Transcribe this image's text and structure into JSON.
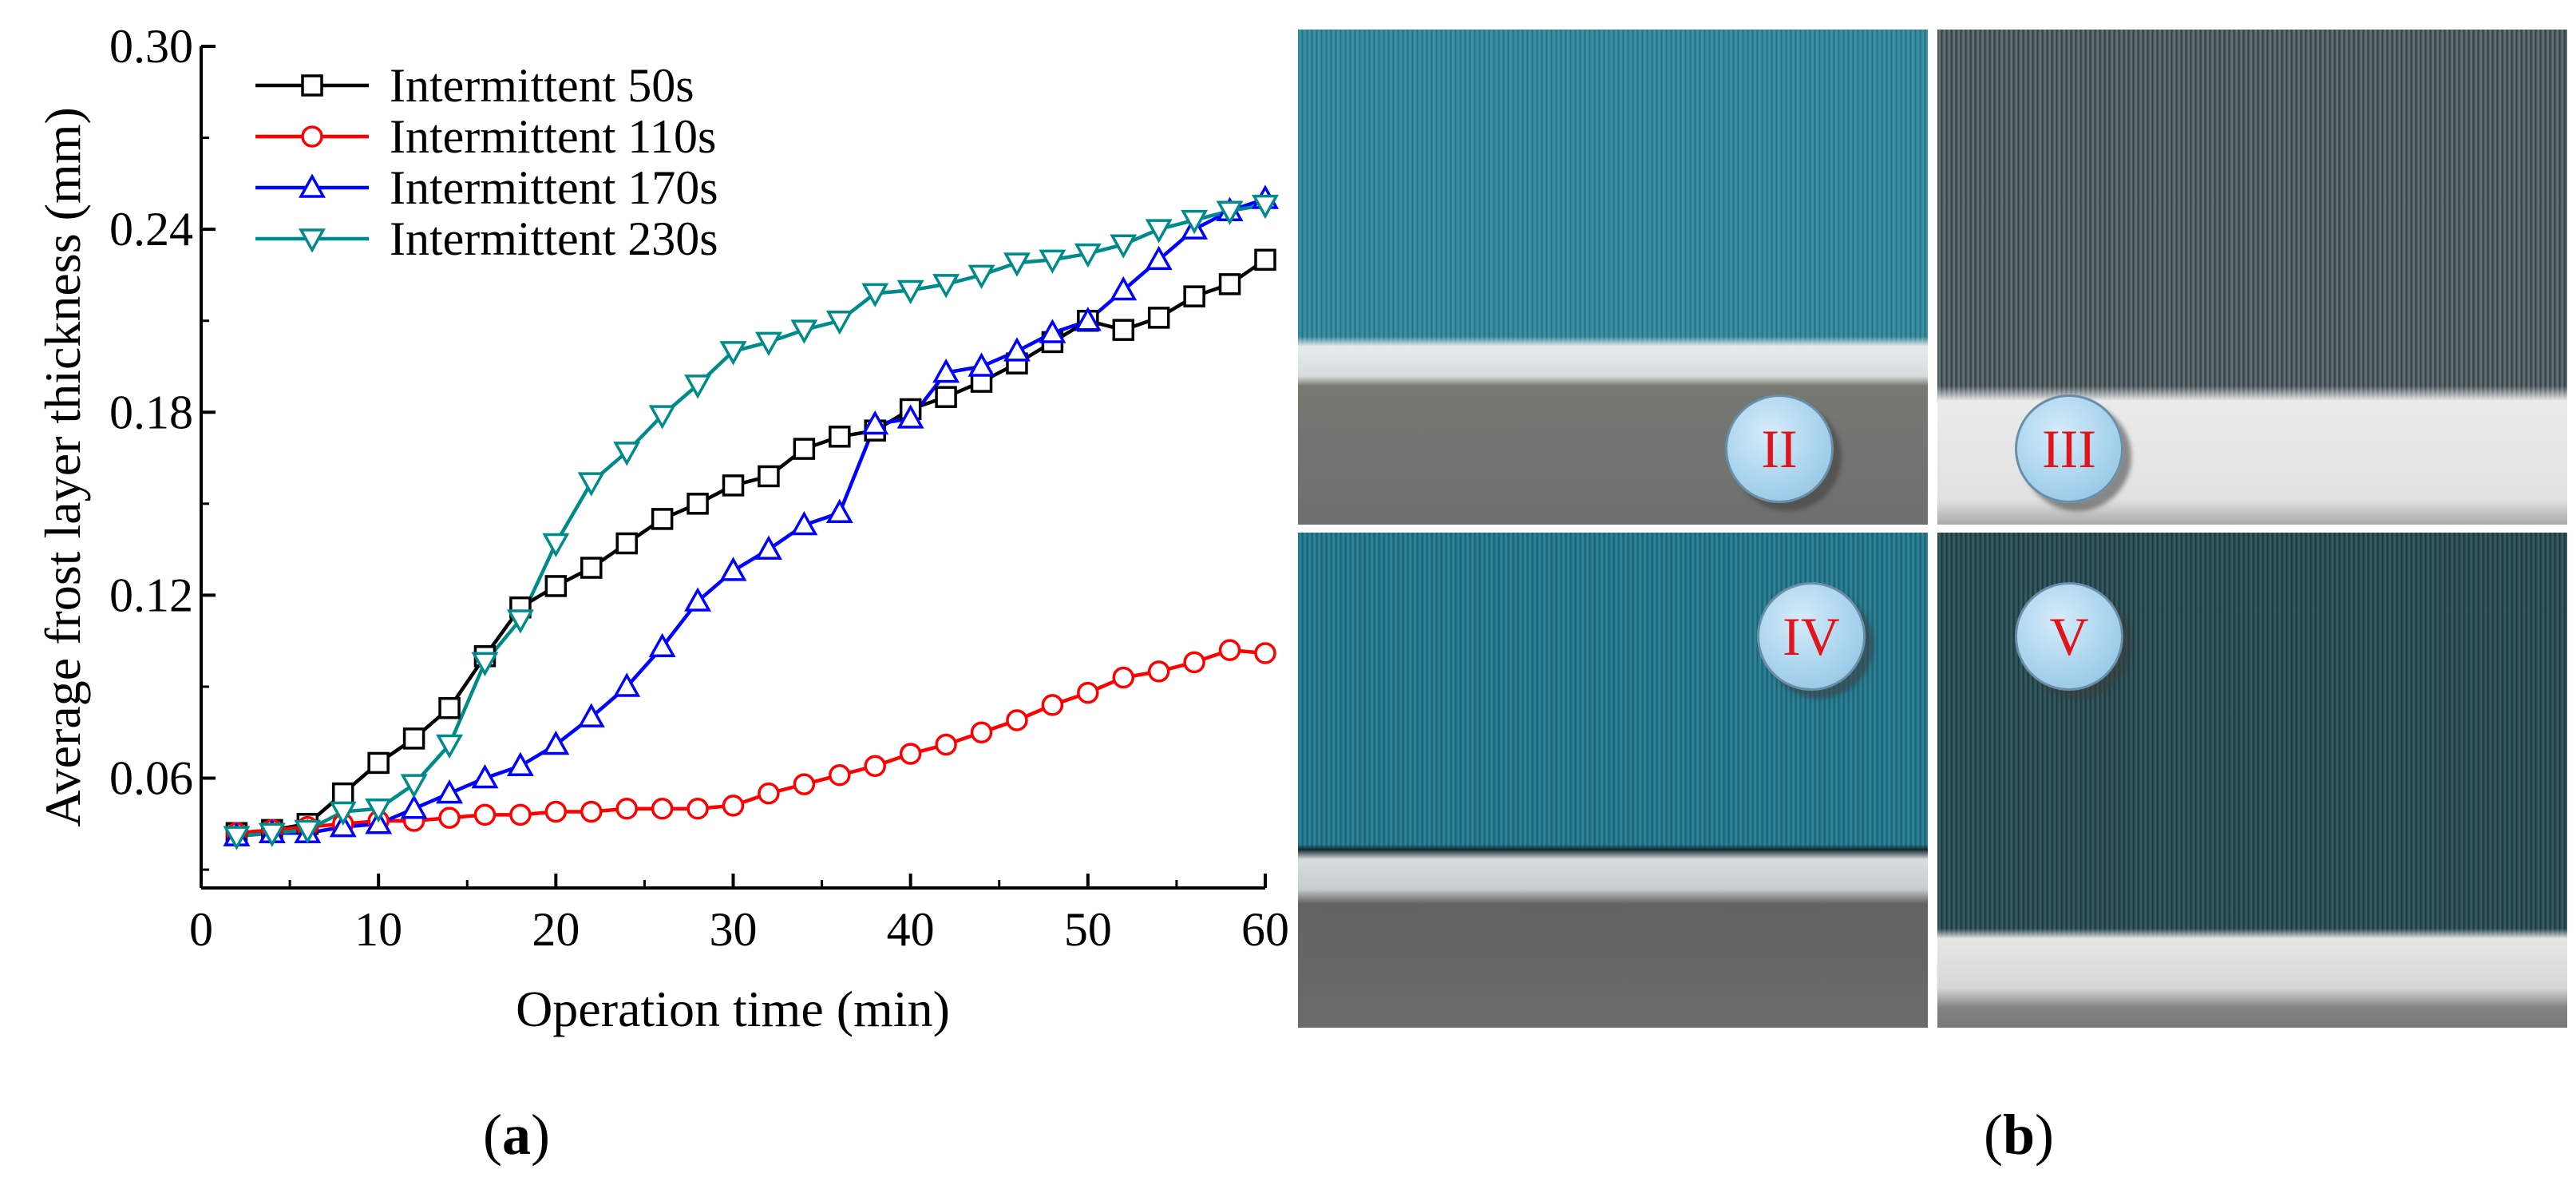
{
  "chart_data": {
    "type": "line",
    "xlabel": "Operation time (min)",
    "ylabel": "Average frost layer thickness (mm)",
    "xlim": [
      0,
      60
    ],
    "ylim": [
      0.024,
      0.3
    ],
    "xticks": [
      0,
      10,
      20,
      30,
      40,
      50,
      60
    ],
    "yticks": [
      "0.06",
      "0.12",
      "0.18",
      "0.24",
      "0.30"
    ],
    "legend_position": "top-left",
    "grid": false,
    "series": [
      {
        "name": "Intermittent 50s",
        "color": "#000000",
        "marker": "square",
        "x": [
          2,
          4,
          6,
          8,
          10,
          12,
          14,
          16,
          18,
          20,
          22,
          24,
          26,
          28,
          30,
          32,
          34,
          36,
          38,
          40,
          42,
          44,
          46,
          48,
          50,
          52,
          54,
          56,
          58,
          60
        ],
        "y": [
          0.042,
          0.043,
          0.045,
          0.055,
          0.065,
          0.073,
          0.083,
          0.1,
          0.116,
          0.123,
          0.129,
          0.137,
          0.145,
          0.15,
          0.156,
          0.159,
          0.168,
          0.172,
          0.174,
          0.181,
          0.185,
          0.19,
          0.196,
          0.203,
          0.21,
          0.207,
          0.211,
          0.218,
          0.222,
          0.23
        ]
      },
      {
        "name": "Intermittent 110s",
        "color": "#ff0000",
        "marker": "circle",
        "x": [
          2,
          4,
          6,
          8,
          10,
          12,
          14,
          16,
          18,
          20,
          22,
          24,
          26,
          28,
          30,
          32,
          34,
          36,
          38,
          40,
          42,
          44,
          46,
          48,
          50,
          52,
          54,
          56,
          58,
          60
        ],
        "y": [
          0.042,
          0.043,
          0.044,
          0.045,
          0.046,
          0.046,
          0.047,
          0.048,
          0.048,
          0.049,
          0.049,
          0.05,
          0.05,
          0.05,
          0.051,
          0.055,
          0.058,
          0.061,
          0.064,
          0.068,
          0.071,
          0.075,
          0.079,
          0.084,
          0.088,
          0.093,
          0.095,
          0.098,
          0.102,
          0.101
        ]
      },
      {
        "name": "Intermittent 170s",
        "color": "#0000ff",
        "marker": "triangle-up",
        "x": [
          2,
          4,
          6,
          8,
          10,
          12,
          14,
          16,
          18,
          20,
          22,
          24,
          26,
          28,
          30,
          32,
          34,
          36,
          38,
          40,
          42,
          44,
          46,
          48,
          50,
          52,
          54,
          56,
          58,
          60
        ],
        "y": [
          0.041,
          0.042,
          0.042,
          0.044,
          0.045,
          0.05,
          0.055,
          0.06,
          0.064,
          0.071,
          0.08,
          0.09,
          0.103,
          0.118,
          0.128,
          0.135,
          0.143,
          0.147,
          0.176,
          0.178,
          0.193,
          0.195,
          0.2,
          0.206,
          0.21,
          0.22,
          0.23,
          0.24,
          0.246,
          0.25
        ]
      },
      {
        "name": "Intermittent 230s",
        "color": "#008b8b",
        "marker": "triangle-down",
        "x": [
          2,
          4,
          6,
          8,
          10,
          12,
          14,
          16,
          18,
          20,
          22,
          24,
          26,
          28,
          30,
          32,
          34,
          36,
          38,
          40,
          42,
          44,
          46,
          48,
          50,
          52,
          54,
          56,
          58,
          60
        ],
        "y": [
          0.041,
          0.042,
          0.043,
          0.049,
          0.05,
          0.058,
          0.071,
          0.098,
          0.112,
          0.137,
          0.157,
          0.167,
          0.179,
          0.189,
          0.2,
          0.203,
          0.207,
          0.21,
          0.219,
          0.22,
          0.222,
          0.225,
          0.229,
          0.23,
          0.232,
          0.235,
          0.24,
          0.243,
          0.246,
          0.248
        ]
      }
    ]
  },
  "photos": [
    {
      "label": "II"
    },
    {
      "label": "III"
    },
    {
      "label": "IV"
    },
    {
      "label": "V"
    }
  ],
  "panels": {
    "a": "a",
    "b": "b"
  }
}
